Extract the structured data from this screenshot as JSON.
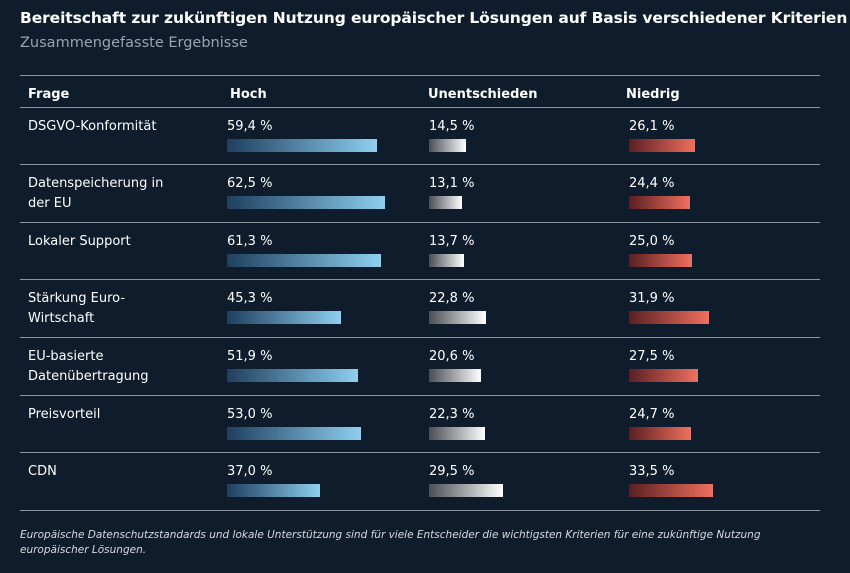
{
  "title": "Bereitschaft zur zukünftigen Nutzung europäischer Lösungen auf Basis verschiedener Kriterien",
  "subtitle": "Zusammengefasste Ergebnisse",
  "footnote": "Europäische Datenschutzstandards und lokale Unterstützung sind für viele Entscheider die wichtigsten Kriterien für eine zukünftige Nutzung europäischer Lösungen.",
  "colors": {
    "background": "#0f1c2b",
    "hoch": "#8ecff0",
    "unentschieden": "#ffffff",
    "niedrig": "#f0705e"
  },
  "chart_data": {
    "type": "table",
    "columns": [
      "Frage",
      "Hoch",
      "Unentschieden",
      "Niedrig"
    ],
    "unit": "%",
    "rows": [
      {
        "label": "DSGVO-Konformität",
        "hoch": 59.4,
        "unentschieden": 14.5,
        "niedrig": 26.1,
        "hoch_text": "59,4 %",
        "unentschieden_text": "14,5 %",
        "niedrig_text": "26,1 %"
      },
      {
        "label": "Datenspeicherung in der EU",
        "hoch": 62.5,
        "unentschieden": 13.1,
        "niedrig": 24.4,
        "hoch_text": "62,5 %",
        "unentschieden_text": "13,1 %",
        "niedrig_text": "24,4 %"
      },
      {
        "label": "Lokaler Support",
        "hoch": 61.3,
        "unentschieden": 13.7,
        "niedrig": 25.0,
        "hoch_text": "61,3 %",
        "unentschieden_text": "13,7 %",
        "niedrig_text": "25,0 %"
      },
      {
        "label": "Stärkung Euro-Wirtschaft",
        "hoch": 45.3,
        "unentschieden": 22.8,
        "niedrig": 31.9,
        "hoch_text": "45,3 %",
        "unentschieden_text": "22,8 %",
        "niedrig_text": "31,9 %"
      },
      {
        "label": "EU-basierte Datenübertragung",
        "hoch": 51.9,
        "unentschieden": 20.6,
        "niedrig": 27.5,
        "hoch_text": "51,9 %",
        "unentschieden_text": "20,6 %",
        "niedrig_text": "27,5 %"
      },
      {
        "label": "Preisvorteil",
        "hoch": 53.0,
        "unentschieden": 22.3,
        "niedrig": 24.7,
        "hoch_text": "53,0 %",
        "unentschieden_text": "22,3 %",
        "niedrig_text": "24,7 %"
      },
      {
        "label": "CDN",
        "hoch": 37.0,
        "unentschieden": 29.5,
        "niedrig": 33.5,
        "hoch_text": "37,0 %",
        "unentschieden_text": "29,5 %",
        "niedrig_text": "33,5 %"
      }
    ]
  }
}
